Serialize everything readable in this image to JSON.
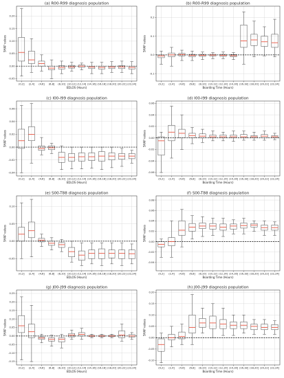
{
  "chart_data": [
    {
      "type": "box",
      "title": "(a) R00-R99 diagnosis population",
      "xlabel": "EDLOS (Hours)",
      "ylabel": "SHAP values",
      "categories": [
        "(0,2]",
        "(2,4]",
        "(4,6]",
        "(6,8]",
        "(8,10]",
        "(10,12]",
        "(12,14]",
        "(14,16]",
        "(16,18]",
        "(18,20]",
        "(20,22]",
        "(22,24]"
      ],
      "yticks": [
        -0.05,
        0.0,
        0.05,
        0.1,
        0.15,
        0.2
      ],
      "ytick_labels": [
        "-0.05",
        "0.00",
        "0.05",
        "0.10",
        "0.15",
        "0.20"
      ],
      "ylim": [
        -0.06,
        0.24
      ],
      "reference_line": 0,
      "boxes": [
        {
          "whislo": -0.04,
          "q1": 0.02,
          "med": 0.055,
          "q3": 0.115,
          "whishi": 0.23
        },
        {
          "whislo": -0.025,
          "q1": 0.01,
          "med": 0.025,
          "q3": 0.06,
          "whishi": 0.11
        },
        {
          "whislo": -0.02,
          "q1": 0.0,
          "med": 0.01,
          "q3": 0.02,
          "whishi": 0.045
        },
        {
          "whislo": -0.05,
          "q1": -0.015,
          "med": -0.008,
          "q3": 0.0,
          "whishi": 0.025
        },
        {
          "whislo": -0.03,
          "q1": -0.012,
          "med": -0.005,
          "q3": 0.002,
          "whishi": 0.02
        },
        {
          "whislo": -0.02,
          "q1": -0.008,
          "med": -0.003,
          "q3": 0.003,
          "whishi": 0.015
        },
        {
          "whislo": -0.015,
          "q1": -0.005,
          "med": 0.0,
          "q3": 0.004,
          "whishi": 0.012
        },
        {
          "whislo": -0.03,
          "q1": -0.01,
          "med": -0.004,
          "q3": 0.0,
          "whishi": 0.015
        },
        {
          "whislo": -0.03,
          "q1": -0.012,
          "med": -0.005,
          "q3": 0.0,
          "whishi": 0.015
        },
        {
          "whislo": -0.025,
          "q1": -0.01,
          "med": -0.004,
          "q3": 0.0,
          "whishi": 0.018
        },
        {
          "whislo": -0.025,
          "q1": -0.01,
          "med": -0.003,
          "q3": 0.002,
          "whishi": 0.02
        },
        {
          "whislo": -0.03,
          "q1": -0.012,
          "med": -0.005,
          "q3": 0.0,
          "whishi": 0.018
        }
      ]
    },
    {
      "type": "box",
      "title": "(b) R00-R99 diagnosis population",
      "xlabel": "Boarding Time (Hours)",
      "ylabel": "SHAP values",
      "categories": [
        "(0,2]",
        "(2,4]",
        "(4,6]",
        "(6,8]",
        "(8,10]",
        "(10,12]",
        "(12,14]",
        "(14,16]",
        "(16,18]",
        "(18,20]",
        "(20,22]",
        "(22,24]"
      ],
      "yticks": [
        -0.1,
        0.0,
        0.1,
        0.2
      ],
      "ytick_labels": [
        "-0.1",
        "0.0",
        "0.1",
        "0.2"
      ],
      "ylim": [
        -0.14,
        0.26
      ],
      "reference_line": 0,
      "boxes": [
        {
          "whislo": -0.05,
          "q1": -0.015,
          "med": -0.005,
          "q3": 0.0,
          "whishi": 0.02
        },
        {
          "whislo": -0.06,
          "q1": -0.01,
          "med": 0.0,
          "q3": 0.01,
          "whishi": 0.04
        },
        {
          "whislo": -0.03,
          "q1": -0.005,
          "med": 0.002,
          "q3": 0.008,
          "whishi": 0.025
        },
        {
          "whislo": -0.03,
          "q1": -0.01,
          "med": -0.003,
          "q3": 0.003,
          "whishi": 0.02
        },
        {
          "whislo": -0.025,
          "q1": -0.008,
          "med": -0.002,
          "q3": 0.003,
          "whishi": 0.015
        },
        {
          "whislo": -0.02,
          "q1": -0.006,
          "med": -0.001,
          "q3": 0.003,
          "whishi": 0.012
        },
        {
          "whislo": -0.02,
          "q1": -0.008,
          "med": -0.002,
          "q3": 0.003,
          "whishi": 0.015
        },
        {
          "whislo": -0.025,
          "q1": -0.01,
          "med": -0.004,
          "q3": 0.002,
          "whishi": 0.012
        },
        {
          "whislo": -0.05,
          "q1": 0.04,
          "med": 0.075,
          "q3": 0.16,
          "whishi": 0.23
        },
        {
          "whislo": -0.01,
          "q1": 0.05,
          "med": 0.08,
          "q3": 0.11,
          "whishi": 0.18
        },
        {
          "whislo": -0.005,
          "q1": 0.045,
          "med": 0.07,
          "q3": 0.1,
          "whishi": 0.15
        },
        {
          "whislo": -0.01,
          "q1": 0.04,
          "med": 0.065,
          "q3": 0.11,
          "whishi": 0.19
        }
      ]
    },
    {
      "type": "box",
      "title": "(c) I00-I99 diagnosis population",
      "xlabel": "EDLOS (Hours)",
      "ylabel": "SHAP values",
      "categories": [
        "(0,2]",
        "(2,4]",
        "(4,6]",
        "(6,8]",
        "(8,10]",
        "(10,12]",
        "(12,14]",
        "(14,16]",
        "(16,18]",
        "(18,20]",
        "(20,22]",
        "(22,24]"
      ],
      "yticks": [
        -0.04,
        -0.02,
        0.0,
        0.02,
        0.04,
        0.06
      ],
      "ytick_labels": [
        "-0.04",
        "-0.02",
        "0.00",
        "0.02",
        "0.04",
        "0.06"
      ],
      "ylim": [
        -0.045,
        0.072
      ],
      "reference_line": 0,
      "boxes": [
        {
          "whislo": -0.04,
          "q1": -0.002,
          "med": 0.01,
          "q3": 0.028,
          "whishi": 0.065
        },
        {
          "whislo": -0.025,
          "q1": 0.01,
          "med": 0.02,
          "q3": 0.032,
          "whishi": 0.068
        },
        {
          "whislo": -0.012,
          "q1": -0.005,
          "med": -0.002,
          "q3": 0.002,
          "whishi": 0.015
        },
        {
          "whislo": -0.01,
          "q1": -0.004,
          "med": -0.001,
          "q3": 0.002,
          "whishi": 0.006
        },
        {
          "whislo": -0.035,
          "q1": -0.024,
          "med": -0.016,
          "q3": -0.008,
          "whishi": 0.002
        },
        {
          "whislo": -0.034,
          "q1": -0.022,
          "med": -0.016,
          "q3": -0.01,
          "whishi": 0.0
        },
        {
          "whislo": -0.034,
          "q1": -0.022,
          "med": -0.015,
          "q3": -0.009,
          "whishi": 0.0
        },
        {
          "whislo": -0.033,
          "q1": -0.021,
          "med": -0.015,
          "q3": -0.009,
          "whishi": 0.0
        },
        {
          "whislo": -0.035,
          "q1": -0.022,
          "med": -0.014,
          "q3": -0.007,
          "whishi": 0.0
        },
        {
          "whislo": -0.032,
          "q1": -0.02,
          "med": -0.014,
          "q3": -0.009,
          "whishi": 0.0
        },
        {
          "whislo": -0.03,
          "q1": -0.019,
          "med": -0.014,
          "q3": -0.01,
          "whishi": -0.002
        },
        {
          "whislo": -0.025,
          "q1": -0.018,
          "med": -0.014,
          "q3": -0.01,
          "whishi": -0.005
        }
      ]
    },
    {
      "type": "box",
      "title": "(d) I00-I99 diagnosis population",
      "xlabel": "Boarding Time (Hours)",
      "ylabel": "SHAP values",
      "categories": [
        "(0,2]",
        "(2,4]",
        "(4,6]",
        "(6,8]",
        "(8,10]",
        "(10,12]",
        "(12,14]",
        "(14,16]",
        "(16,18]",
        "(18,20]",
        "(20,22]",
        "(22,24]"
      ],
      "yticks": [
        -0.06,
        -0.04,
        -0.02,
        0.0,
        0.02,
        0.04,
        0.06
      ],
      "ytick_labels": [
        "-0.06",
        "-0.04",
        "-0.02",
        "0.00",
        "0.02",
        "0.04",
        "0.06"
      ],
      "ylim": [
        -0.066,
        0.064
      ],
      "reference_line": 0,
      "boxes": [
        {
          "whislo": -0.06,
          "q1": -0.03,
          "med": -0.005,
          "q3": 0.002,
          "whishi": 0.01
        },
        {
          "whislo": -0.035,
          "q1": -0.005,
          "med": 0.01,
          "q3": 0.022,
          "whishi": 0.055
        },
        {
          "whislo": -0.02,
          "q1": 0.0,
          "med": 0.008,
          "q3": 0.015,
          "whishi": 0.04
        },
        {
          "whislo": -0.01,
          "q1": 0.0,
          "med": 0.004,
          "q3": 0.008,
          "whishi": 0.018
        },
        {
          "whislo": -0.008,
          "q1": 0.0,
          "med": 0.003,
          "q3": 0.007,
          "whishi": 0.015
        },
        {
          "whislo": -0.005,
          "q1": 0.0,
          "med": 0.002,
          "q3": 0.005,
          "whishi": 0.012
        },
        {
          "whislo": -0.005,
          "q1": 0.0,
          "med": 0.002,
          "q3": 0.005,
          "whishi": 0.01
        },
        {
          "whislo": -0.006,
          "q1": 0.0,
          "med": 0.002,
          "q3": 0.005,
          "whishi": 0.012
        },
        {
          "whislo": -0.004,
          "q1": 0.0,
          "med": 0.002,
          "q3": 0.006,
          "whishi": 0.012
        },
        {
          "whislo": -0.004,
          "q1": 0.0,
          "med": 0.002,
          "q3": 0.004,
          "whishi": 0.01
        },
        {
          "whislo": -0.004,
          "q1": 0.0,
          "med": 0.003,
          "q3": 0.006,
          "whishi": 0.012
        },
        {
          "whislo": -0.003,
          "q1": 0.0,
          "med": 0.002,
          "q3": 0.004,
          "whishi": 0.008
        }
      ]
    },
    {
      "type": "box",
      "title": "(e) S00-T88 diagnosis population",
      "xlabel": "EDLOS (Hours)",
      "ylabel": "SHAP values",
      "categories": [
        "(0,2]",
        "(2,4]",
        "(4,6]",
        "(6,8]",
        "(8,10]",
        "(10,12]",
        "(12,14]",
        "(14,16]",
        "(16,18]",
        "(18,20]",
        "(20,22]",
        "(22,24]"
      ],
      "yticks": [
        -0.05,
        0.0,
        0.05,
        0.1
      ],
      "ytick_labels": [
        "-0.05",
        "0.00",
        "0.05",
        "0.10"
      ],
      "ylim": [
        -0.085,
        0.13
      ],
      "reference_line": 0,
      "boxes": [
        {
          "whislo": -0.05,
          "q1": 0.0,
          "med": 0.02,
          "q3": 0.04,
          "whishi": 0.11
        },
        {
          "whislo": -0.045,
          "q1": 0.01,
          "med": 0.03,
          "q3": 0.055,
          "whishi": 0.12
        },
        {
          "whislo": -0.015,
          "q1": -0.002,
          "med": 0.003,
          "q3": 0.008,
          "whishi": 0.02
        },
        {
          "whislo": -0.025,
          "q1": -0.012,
          "med": -0.006,
          "q3": 0.0,
          "whishi": 0.01
        },
        {
          "whislo": -0.03,
          "q1": -0.018,
          "med": -0.01,
          "q3": -0.004,
          "whishi": 0.005
        },
        {
          "whislo": -0.06,
          "q1": -0.045,
          "med": -0.03,
          "q3": -0.018,
          "whishi": 0.0
        },
        {
          "whislo": -0.07,
          "q1": -0.055,
          "med": -0.04,
          "q3": -0.028,
          "whishi": -0.005
        },
        {
          "whislo": -0.065,
          "q1": -0.05,
          "med": -0.035,
          "q3": -0.025,
          "whishi": -0.005
        },
        {
          "whislo": -0.07,
          "q1": -0.05,
          "med": -0.035,
          "q3": -0.022,
          "whishi": -0.005
        },
        {
          "whislo": -0.065,
          "q1": -0.048,
          "med": -0.035,
          "q3": -0.025,
          "whishi": -0.005
        },
        {
          "whislo": -0.07,
          "q1": -0.05,
          "med": -0.035,
          "q3": -0.025,
          "whishi": -0.005
        },
        {
          "whislo": -0.065,
          "q1": -0.05,
          "med": -0.036,
          "q3": -0.025,
          "whishi": -0.008
        }
      ]
    },
    {
      "type": "box",
      "title": "(f) S00-T88 diagnosis population",
      "xlabel": "Boarding Time (Hours)",
      "ylabel": "SHAP values",
      "categories": [
        "(0,2]",
        "(2,4]",
        "(4,6]",
        "(6,8]",
        "(8,10]",
        "(10,12]",
        "(12,14]",
        "(14,16]",
        "(16,18]",
        "(18,20]",
        "(20,22]",
        "(22,24]"
      ],
      "yticks": [
        -0.04,
        -0.02,
        0.0,
        0.02,
        0.04,
        0.06,
        0.08
      ],
      "ytick_labels": [
        "-0.04",
        "-0.02",
        "0.00",
        "0.02",
        "0.04",
        "0.06",
        "0.08"
      ],
      "ylim": [
        -0.056,
        0.088
      ],
      "reference_line": 0,
      "boxes": [
        {
          "whislo": -0.03,
          "q1": -0.01,
          "med": -0.005,
          "q3": 0.0,
          "whishi": 0.005
        },
        {
          "whislo": -0.03,
          "q1": -0.008,
          "med": 0.0,
          "q3": 0.008,
          "whishi": 0.04
        },
        {
          "whislo": -0.01,
          "q1": 0.012,
          "med": 0.022,
          "q3": 0.04,
          "whishi": 0.062
        },
        {
          "whislo": 0.005,
          "q1": 0.02,
          "med": 0.028,
          "q3": 0.035,
          "whishi": 0.05
        },
        {
          "whislo": 0.01,
          "q1": 0.025,
          "med": 0.03,
          "q3": 0.036,
          "whishi": 0.048
        },
        {
          "whislo": 0.012,
          "q1": 0.024,
          "med": 0.03,
          "q3": 0.035,
          "whishi": 0.045
        },
        {
          "whislo": 0.01,
          "q1": 0.022,
          "med": 0.028,
          "q3": 0.034,
          "whishi": 0.045
        },
        {
          "whislo": 0.015,
          "q1": 0.024,
          "med": 0.03,
          "q3": 0.034,
          "whishi": 0.042
        },
        {
          "whislo": 0.015,
          "q1": 0.026,
          "med": 0.031,
          "q3": 0.036,
          "whishi": 0.045
        },
        {
          "whislo": 0.02,
          "q1": 0.028,
          "med": 0.032,
          "q3": 0.035,
          "whishi": 0.04
        },
        {
          "whislo": 0.012,
          "q1": 0.022,
          "med": 0.027,
          "q3": 0.032,
          "whishi": 0.04
        },
        {
          "whislo": 0.012,
          "q1": 0.022,
          "med": 0.027,
          "q3": 0.032,
          "whishi": 0.038
        }
      ]
    },
    {
      "type": "box",
      "title": "(g) J00-J99 diagnosis population",
      "xlabel": "EDLOS (Hours)",
      "ylabel": "SHAP values",
      "categories": [
        "(0,2]",
        "(2,4]",
        "(4,6]",
        "(6,8]",
        "(8,10]",
        "(10,12]",
        "(12,14]",
        "(14,16]",
        "(16,18]",
        "(18,20]",
        "(20,22]",
        "(22,24]"
      ],
      "yticks": [
        -0.15,
        -0.1,
        -0.05,
        0.0,
        0.05,
        0.1,
        0.15,
        0.2,
        0.25
      ],
      "ytick_labels": [
        "-0.15",
        "-0.10",
        "-0.05",
        "0.00",
        "0.05",
        "0.10",
        "0.15",
        "0.20",
        "0.25"
      ],
      "ylim": [
        -0.17,
        0.27
      ],
      "reference_line": 0,
      "boxes": [
        {
          "whislo": -0.14,
          "q1": 0.02,
          "med": 0.06,
          "q3": 0.12,
          "whishi": 0.23
        },
        {
          "whislo": -0.15,
          "q1": -0.01,
          "med": 0.025,
          "q3": 0.07,
          "whishi": 0.18
        },
        {
          "whislo": -0.04,
          "q1": -0.02,
          "med": -0.012,
          "q3": -0.005,
          "whishi": 0.01
        },
        {
          "whislo": -0.06,
          "q1": -0.03,
          "med": -0.02,
          "q3": -0.01,
          "whishi": 0.005
        },
        {
          "whislo": -0.07,
          "q1": -0.035,
          "med": -0.02,
          "q3": -0.01,
          "whishi": 0.01
        },
        {
          "whislo": -0.02,
          "q1": -0.005,
          "med": 0.005,
          "q3": 0.015,
          "whishi": 0.035
        },
        {
          "whislo": -0.02,
          "q1": 0.0,
          "med": 0.01,
          "q3": 0.02,
          "whishi": 0.045
        },
        {
          "whislo": -0.01,
          "q1": -0.004,
          "med": 0.0,
          "q3": 0.004,
          "whishi": 0.01
        },
        {
          "whislo": -0.01,
          "q1": -0.004,
          "med": 0.0,
          "q3": 0.004,
          "whishi": 0.01
        },
        {
          "whislo": -0.01,
          "q1": -0.004,
          "med": 0.0,
          "q3": 0.004,
          "whishi": 0.01
        },
        {
          "whislo": -0.03,
          "q1": -0.01,
          "med": 0.005,
          "q3": 0.03,
          "whishi": 0.07
        },
        {
          "whislo": -0.02,
          "q1": -0.006,
          "med": 0.0,
          "q3": 0.008,
          "whishi": 0.02
        }
      ]
    },
    {
      "type": "box",
      "title": "(h) J00-J99 diagnosis population",
      "xlabel": "Boarding Time (Hours)",
      "ylabel": "SHAP values",
      "categories": [
        "(0,2]",
        "(2,4]",
        "(4,6]",
        "(6,8]",
        "(8,10]",
        "(10,12]",
        "(12,14]",
        "(14,16]",
        "(16,18]",
        "(18,20]",
        "(20,22]",
        "(22,24]"
      ],
      "yticks": [
        -0.1,
        -0.05,
        0.0,
        0.05,
        0.1,
        0.15,
        0.2
      ],
      "ytick_labels": [
        "-0.10",
        "-0.05",
        "0.00",
        "0.05",
        "0.10",
        "0.15",
        "0.20"
      ],
      "ylim": [
        -0.12,
        0.21
      ],
      "reference_line": 0,
      "boxes": [
        {
          "whislo": -0.11,
          "q1": -0.06,
          "med": -0.03,
          "q3": -0.005,
          "whishi": 0.02
        },
        {
          "whislo": -0.04,
          "q1": -0.01,
          "med": 0.0,
          "q3": 0.015,
          "whishi": 0.05
        },
        {
          "whislo": -0.03,
          "q1": -0.005,
          "med": 0.005,
          "q3": 0.025,
          "whishi": 0.06
        },
        {
          "whislo": -0.03,
          "q1": 0.02,
          "med": 0.045,
          "q3": 0.1,
          "whishi": 0.19
        },
        {
          "whislo": 0.02,
          "q1": 0.045,
          "med": 0.065,
          "q3": 0.085,
          "whishi": 0.13
        },
        {
          "whislo": 0.0,
          "q1": 0.04,
          "med": 0.065,
          "q3": 0.095,
          "whishi": 0.15
        },
        {
          "whislo": 0.01,
          "q1": 0.04,
          "med": 0.06,
          "q3": 0.08,
          "whishi": 0.13
        },
        {
          "whislo": 0.01,
          "q1": 0.04,
          "med": 0.055,
          "q3": 0.07,
          "whishi": 0.1
        },
        {
          "whislo": 0.02,
          "q1": 0.04,
          "med": 0.055,
          "q3": 0.07,
          "whishi": 0.1
        },
        {
          "whislo": 0.015,
          "q1": 0.035,
          "med": 0.05,
          "q3": 0.06,
          "whishi": 0.08
        },
        {
          "whislo": 0.015,
          "q1": 0.035,
          "med": 0.045,
          "q3": 0.06,
          "whishi": 0.08
        },
        {
          "whislo": 0.015,
          "q1": 0.035,
          "med": 0.045,
          "q3": 0.058,
          "whishi": 0.075
        }
      ]
    }
  ],
  "colors": {
    "box": "#333333",
    "median": "#e8402a",
    "reference_line": "#000000",
    "grid": "#cfcfcf"
  }
}
